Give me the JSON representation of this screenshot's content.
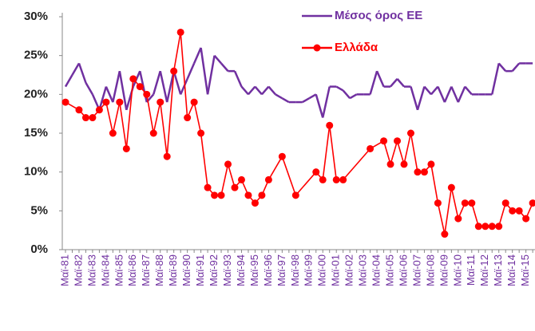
{
  "chart_data": {
    "type": "line",
    "categories": [
      "Μαϊ-81",
      null,
      "Μαϊ-82",
      null,
      "Μαϊ-83",
      null,
      "Μαϊ-84",
      null,
      "Μαϊ-85",
      null,
      "Μαϊ-86",
      null,
      "Μαϊ-87",
      null,
      "Μαϊ-88",
      null,
      "Μαϊ-89",
      null,
      "Μαϊ-90",
      null,
      "Μαϊ-91",
      null,
      "Μαϊ-92",
      null,
      "Μαϊ-93",
      null,
      "Μαϊ-94",
      null,
      "Μαϊ-95",
      null,
      "Μαϊ-96",
      null,
      "Μαϊ-97",
      null,
      "Μαϊ-98",
      null,
      "Μαϊ-99",
      null,
      "Μαϊ-00",
      null,
      "Μαϊ-01",
      null,
      "Μαϊ-02",
      null,
      "Μαϊ-03",
      null,
      "Μαϊ-04",
      null,
      "Μαϊ-05",
      null,
      "Μαϊ-06",
      null,
      "Μαϊ-07",
      null,
      "Μαϊ-08",
      null,
      "Μαϊ-09",
      null,
      "Μαϊ-10",
      null,
      "Μαϊ-11",
      null,
      "Μαϊ-12",
      null,
      "Μαϊ-13",
      null,
      "Μαϊ-14",
      null,
      "Μαϊ-15",
      null
    ],
    "series": [
      {
        "name": "Μέσος όρος ΕΕ",
        "color": "#7030a0",
        "markers": false,
        "values": [
          21,
          22.5,
          24,
          21.5,
          20,
          18,
          21,
          19,
          23,
          18,
          21,
          23,
          19,
          20,
          23,
          19,
          23,
          20,
          22,
          24,
          26,
          20,
          25,
          24,
          23,
          23,
          21,
          20,
          21,
          20,
          21,
          20,
          19.5,
          19,
          19,
          19,
          19.5,
          20,
          17,
          21,
          21,
          20.5,
          19.5,
          20,
          20,
          20,
          23,
          21,
          21,
          22,
          21,
          21,
          18,
          21,
          20,
          21,
          19,
          21,
          19,
          21,
          20,
          20,
          20,
          20,
          24,
          23,
          23,
          24,
          24,
          24
        ]
      },
      {
        "name": "Ελλάδα",
        "color": "#ff0000",
        "markers": true,
        "values": [
          19,
          null,
          18,
          17,
          17,
          18,
          19,
          15,
          19,
          13,
          22,
          21,
          20,
          15,
          19,
          12,
          23,
          28,
          17,
          19,
          15,
          8,
          7,
          7,
          11,
          8,
          9,
          7,
          6,
          7,
          9,
          null,
          12,
          null,
          7,
          null,
          null,
          10,
          9,
          16,
          9,
          9,
          null,
          null,
          null,
          13,
          null,
          14,
          11,
          14,
          11,
          15,
          10,
          10,
          11,
          6,
          2,
          8,
          4,
          6,
          6,
          3,
          3,
          3,
          3,
          6,
          5,
          5,
          4,
          6
        ]
      }
    ],
    "ylim": [
      0,
      30
    ],
    "yticks": [
      {
        "value": 0,
        "label": "0%"
      },
      {
        "value": 5,
        "label": "5%"
      },
      {
        "value": 10,
        "label": "10%"
      },
      {
        "value": 15,
        "label": "15%"
      },
      {
        "value": 20,
        "label": "20%"
      },
      {
        "value": 25,
        "label": "25%"
      },
      {
        "value": 30,
        "label": "30%"
      }
    ],
    "grid": false,
    "legend": "top-right"
  }
}
